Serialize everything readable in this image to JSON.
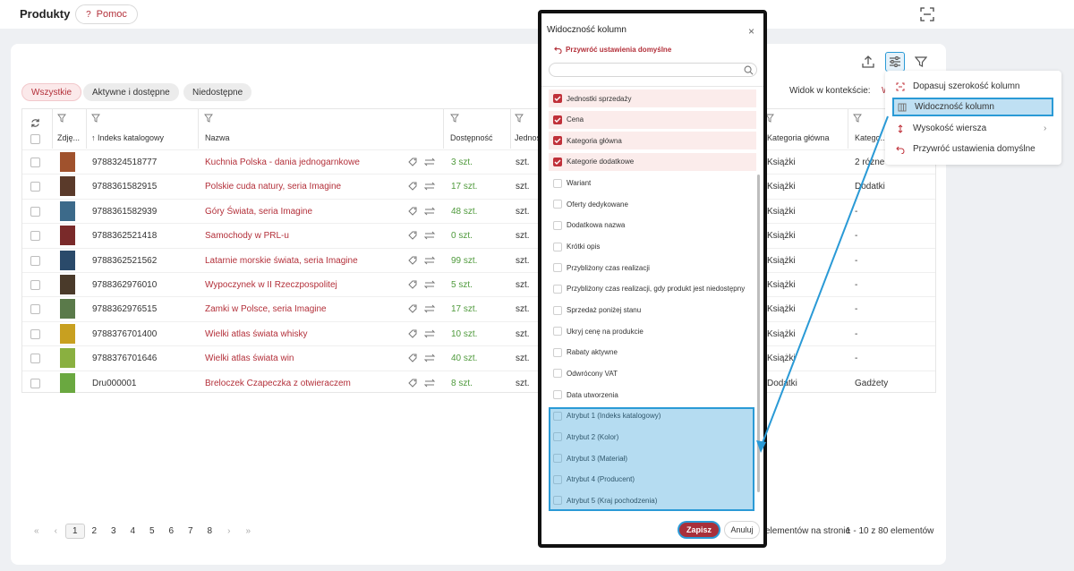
{
  "header": {
    "title": "Produkty",
    "help_label": "Pomoc",
    "help_icon": "question-icon"
  },
  "filters": {
    "tabs": [
      {
        "label": "Wszystkie",
        "active": true
      },
      {
        "label": "Aktywne i dostępne",
        "active": false
      },
      {
        "label": "Niedostępne",
        "active": false
      }
    ],
    "context_label": "Widok w kontekście:",
    "context_value": "W"
  },
  "table": {
    "columns": [
      "Zdję...",
      "↑ Indeks katalogowy",
      "Nazwa",
      "Dostępność",
      "Jednos...",
      "Kategoria główna",
      "Katego..."
    ],
    "rows": [
      {
        "index": "9788324518777",
        "name": "Kuchnia Polska - dania jednogarnkowe",
        "availability": "3 szt.",
        "unit": "szt.",
        "main_category": "Książki",
        "extra_category": "2 różne",
        "thumb": "#a0522d"
      },
      {
        "index": "9788361582915",
        "name": "Polskie cuda natury, seria Imagine",
        "availability": "17 szt.",
        "unit": "szt.",
        "main_category": "Książki",
        "extra_category": "Dodatki",
        "thumb": "#5a3a2a"
      },
      {
        "index": "9788361582939",
        "name": "Góry Świata, seria Imagine",
        "availability": "48 szt.",
        "unit": "szt.",
        "main_category": "Książki",
        "extra_category": "-",
        "thumb": "#3c6a8a"
      },
      {
        "index": "9788362521418",
        "name": "Samochody w PRL-u",
        "availability": "0 szt.",
        "unit": "szt.",
        "main_category": "Książki",
        "extra_category": "-",
        "thumb": "#7a2a2a"
      },
      {
        "index": "9788362521562",
        "name": "Latarnie morskie świata, seria Imagine",
        "availability": "99 szt.",
        "unit": "szt.",
        "main_category": "Książki",
        "extra_category": "-",
        "thumb": "#2a4a6a"
      },
      {
        "index": "9788362976010",
        "name": "Wypoczynek w II Rzeczpospolitej",
        "availability": "5 szt.",
        "unit": "szt.",
        "main_category": "Książki",
        "extra_category": "-",
        "thumb": "#4a3a2a"
      },
      {
        "index": "9788362976515",
        "name": "Zamki w Polsce, seria Imagine",
        "availability": "17 szt.",
        "unit": "szt.",
        "main_category": "Książki",
        "extra_category": "-",
        "thumb": "#5a7a4a"
      },
      {
        "index": "9788376701400",
        "name": "Wielki atlas świata whisky",
        "availability": "10 szt.",
        "unit": "szt.",
        "main_category": "Książki",
        "extra_category": "-",
        "thumb": "#c8a020"
      },
      {
        "index": "9788376701646",
        "name": "Wielki atlas świata win",
        "availability": "40 szt.",
        "unit": "szt.",
        "main_category": "Książki",
        "extra_category": "-",
        "thumb": "#8ab040"
      },
      {
        "index": "Dru000001",
        "name": "Breloczek Czapeczka z otwieraczem",
        "availability": "8 szt.",
        "unit": "szt.",
        "main_category": "Dodatki",
        "extra_category": "Gadżety",
        "thumb": "#6aa840"
      }
    ]
  },
  "pagination": {
    "first": "«",
    "prev": "‹",
    "next": "›",
    "last": "»",
    "pages": [
      "1",
      "2",
      "3",
      "4",
      "5",
      "6",
      "7",
      "8"
    ],
    "current": "1",
    "per_page_label": "elementów na stronie",
    "range": "1 - 10 z 80 elementów"
  },
  "modal": {
    "title": "Widoczność kolumn",
    "close": "×",
    "reset_label": "Przywróć ustawienia domyślne",
    "options": [
      {
        "label": "Jednostki sprzedaży",
        "checked": true
      },
      {
        "label": "Cena",
        "checked": true
      },
      {
        "label": "Kategoria główna",
        "checked": true
      },
      {
        "label": "Kategorie dodatkowe",
        "checked": true
      },
      {
        "label": "Wariant",
        "checked": false
      },
      {
        "label": "Oferty dedykowane",
        "checked": false
      },
      {
        "label": "Dodatkowa nazwa",
        "checked": false
      },
      {
        "label": "Krótki opis",
        "checked": false
      },
      {
        "label": "Przybliżony czas realizacji",
        "checked": false
      },
      {
        "label": "Przybliżony czas realizacji, gdy produkt jest niedostępny",
        "checked": false
      },
      {
        "label": "Sprzedaż poniżej stanu",
        "checked": false
      },
      {
        "label": "Ukryj cenę na produkcie",
        "checked": false
      },
      {
        "label": "Rabaty aktywne",
        "checked": false
      },
      {
        "label": "Odwrócony VAT",
        "checked": false
      },
      {
        "label": "Data utworzenia",
        "checked": false
      },
      {
        "label": "Atrybut 1 (Indeks katalogowy)",
        "checked": false
      },
      {
        "label": "Atrybut 2 (Kolor)",
        "checked": false
      },
      {
        "label": "Atrybut 3 (Materiał)",
        "checked": false
      },
      {
        "label": "Atrybut 4 (Producent)",
        "checked": false
      },
      {
        "label": "Atrybut 5 (Kraj pochodzenia)",
        "checked": false
      }
    ],
    "save_label": "Zapisz",
    "cancel_label": "Anuluj"
  },
  "menu": {
    "items": [
      {
        "label": "Dopasuj szerokość kolumn",
        "icon": "fit-width-icon"
      },
      {
        "label": "Widoczność kolumn",
        "icon": "columns-icon",
        "highlight": true
      },
      {
        "label": "Wysokość wiersza",
        "icon": "row-height-icon",
        "submenu": true
      },
      {
        "label": "Przywróć ustawienia domyślne",
        "icon": "reset-icon"
      }
    ],
    "chevron": "›"
  },
  "colors": {
    "accent": "#b3303a",
    "highlight": "#2a9ad6",
    "available": "#4f9a3c"
  }
}
